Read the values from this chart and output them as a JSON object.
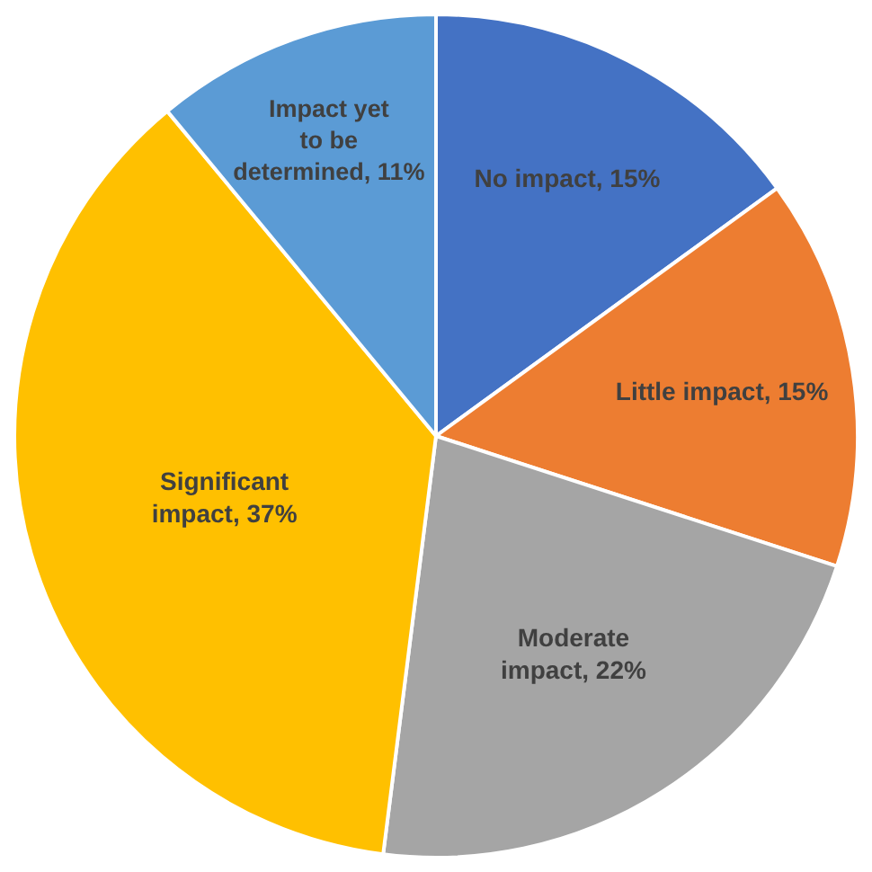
{
  "chart_data": {
    "type": "pie",
    "categories": [
      "No impact",
      "Little impact",
      "Moderate impact",
      "Significant impact",
      "Impact yet to be determined"
    ],
    "values": [
      15,
      15,
      22,
      37,
      11
    ],
    "value_labels": [
      "15%",
      "15%",
      "22%",
      "37%",
      "11%"
    ],
    "colors": [
      "#4472c4",
      "#ed7d31",
      "#a5a5a5",
      "#ffc000",
      "#5b9bd5"
    ],
    "legend": false
  }
}
